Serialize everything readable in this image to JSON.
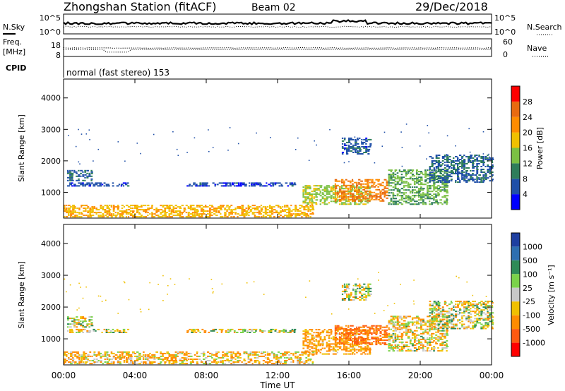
{
  "header": {
    "station": "Zhongshan Station (fitACF)",
    "beam": "Beam 02",
    "date": "29/Dec/2018"
  },
  "top_panels": {
    "nsky": {
      "label": "N.Sky",
      "tick_top": "10^5",
      "tick_bottom": "10^0",
      "right_tick_top": "10^5",
      "right_tick_bottom": "10^0",
      "right_label": "N.Search"
    },
    "freq": {
      "label_line1": "Freq.",
      "label_line2": "[MHz]",
      "tick_top": "18",
      "tick_bottom": "8",
      "right_tick_top": "60",
      "right_tick_bottom": "0",
      "right_label": "Nave"
    },
    "cpid": {
      "label": "CPID",
      "text": "normal (fast stereo) 153"
    }
  },
  "panels": {
    "power": {
      "ylabel": "Slant Range [km]",
      "yticks": [
        "1000",
        "2000",
        "3000",
        "4000"
      ],
      "colorbar_label": "Power [dB]",
      "colorbar_ticks": [
        "4",
        "8",
        "12",
        "16",
        "20",
        "24",
        "28"
      ],
      "colors": [
        "#0000ff",
        "#1f4fa8",
        "#2e7d5a",
        "#7bc043",
        "#f0c000",
        "#ff8c00",
        "#e86a10",
        "#ff0000"
      ]
    },
    "velocity": {
      "ylabel": "Slant Range [km]",
      "yticks": [
        "1000",
        "2000",
        "3000",
        "4000"
      ],
      "colorbar_label": "Velocity [m s⁻¹]",
      "colorbar_ticks": [
        "1000",
        "500",
        "100",
        "25",
        "-25",
        "-100",
        "-500",
        "-1000"
      ],
      "colors": [
        "#1e3fa0",
        "#2e6fb0",
        "#2e8b57",
        "#7bd24a",
        "#c8c8c8",
        "#f0c000",
        "#ff8c00",
        "#ff5a10",
        "#ff0000"
      ]
    }
  },
  "xaxis": {
    "label": "Time UT",
    "ticks": [
      "00:00",
      "04:00",
      "08:00",
      "12:00",
      "16:00",
      "20:00",
      "00:00"
    ]
  },
  "chart_data": [
    {
      "type": "line",
      "title": "N.Sky",
      "x_range": [
        "00:00",
        "24:00"
      ],
      "approx_level": "10^3",
      "right_axis": [
        "10^0",
        "10^5"
      ]
    },
    {
      "type": "line",
      "title": "Freq. [MHz]",
      "y_range": [
        8,
        18
      ],
      "approx_value_MHz": 12,
      "right_axis_label": "Nave",
      "right_range": [
        0,
        60
      ]
    },
    {
      "type": "heatmap",
      "title": "Power [dB]",
      "xlabel": "Time UT",
      "ylabel": "Slant Range [km]",
      "ylim": [
        180,
        4600
      ],
      "x_range_hours": [
        0,
        24
      ],
      "color_scale": [
        0,
        30
      ],
      "regions": [
        {
          "t0": 0.0,
          "t1": 14.0,
          "r0": 200,
          "r1": 600,
          "level": 18
        },
        {
          "t0": 0.2,
          "t1": 1.6,
          "r0": 1350,
          "r1": 1700,
          "level": 7
        },
        {
          "t0": 0.2,
          "t1": 3.6,
          "r0": 1180,
          "r1": 1300,
          "level": 5
        },
        {
          "t0": 6.9,
          "t1": 12.9,
          "r0": 1180,
          "r1": 1290,
          "level": 5
        },
        {
          "t0": 13.4,
          "t1": 17.2,
          "r0": 600,
          "r1": 1200,
          "level": 14
        },
        {
          "t0": 15.2,
          "t1": 18.2,
          "r0": 700,
          "r1": 1400,
          "level": 22
        },
        {
          "t0": 15.6,
          "t1": 17.2,
          "r0": 2200,
          "r1": 2700,
          "level": 6
        },
        {
          "t0": 18.2,
          "t1": 21.5,
          "r0": 600,
          "r1": 1700,
          "level": 12
        },
        {
          "t0": 20.5,
          "t1": 24.0,
          "r0": 1300,
          "r1": 2200,
          "level": 7
        }
      ]
    },
    {
      "type": "heatmap",
      "title": "Velocity [m s⁻¹]",
      "xlabel": "Time UT",
      "ylabel": "Slant Range [km]",
      "ylim": [
        180,
        4600
      ],
      "x_range_hours": [
        0,
        24
      ],
      "color_scale": [
        -1000,
        1000
      ],
      "regions": [
        {
          "t0": 0.0,
          "t1": 14.0,
          "r0": 200,
          "r1": 600,
          "level": -100
        },
        {
          "t0": 0.2,
          "t1": 1.6,
          "r0": 1350,
          "r1": 1700,
          "level": 0
        },
        {
          "t0": 0.2,
          "t1": 3.6,
          "r0": 1180,
          "r1": 1300,
          "level": 0
        },
        {
          "t0": 6.9,
          "t1": 12.9,
          "r0": 1180,
          "r1": 1290,
          "level": 0
        },
        {
          "t0": 13.4,
          "t1": 17.2,
          "r0": 500,
          "r1": 1300,
          "level": -200
        },
        {
          "t0": 15.2,
          "t1": 18.2,
          "r0": 800,
          "r1": 1400,
          "level": -500
        },
        {
          "t0": 15.6,
          "t1": 17.2,
          "r0": 2200,
          "r1": 2700,
          "level": 0
        },
        {
          "t0": 18.2,
          "t1": 21.5,
          "r0": 600,
          "r1": 1700,
          "level": -60
        },
        {
          "t0": 20.5,
          "t1": 24.0,
          "r0": 1300,
          "r1": 2200,
          "level": 0
        }
      ]
    }
  ]
}
